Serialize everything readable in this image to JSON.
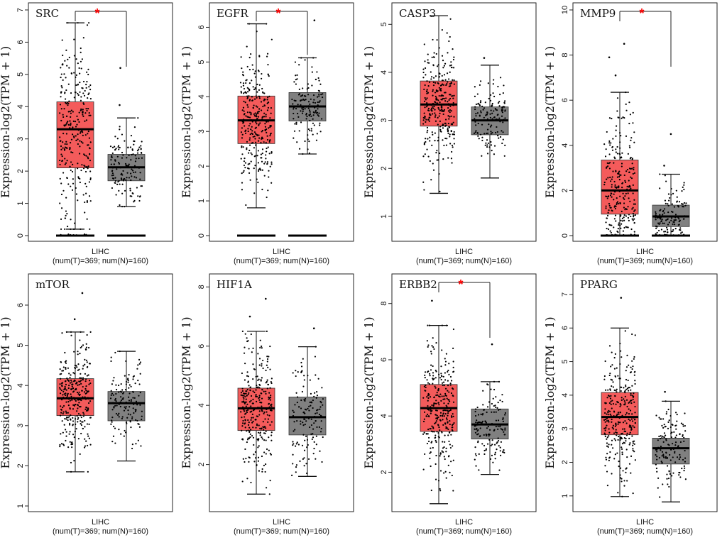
{
  "chart_data": [
    {
      "type": "box",
      "gene": "SRC",
      "ylabel": "Expression-log2(TPM + 1)",
      "ylim": [
        0,
        7
      ],
      "yticks": [
        0,
        1,
        2,
        3,
        4,
        5,
        6,
        7
      ],
      "dataset": "LIHC",
      "sample_info": "(num(T)=369; num(N)=160)",
      "significant": true,
      "tumor": {
        "min": 0.2,
        "q1": 2.1,
        "median": 3.3,
        "q3": 4.15,
        "max": 6.6
      },
      "normal": {
        "min": 0.9,
        "q1": 1.7,
        "median": 2.12,
        "q3": 2.52,
        "max": 3.65
      },
      "tumor_outliers_high": [],
      "normal_outliers_high": [
        4.05,
        5.2
      ],
      "zeros": true
    },
    {
      "type": "box",
      "gene": "EGFR",
      "ylabel": "Expression-log2(TPM + 1)",
      "ylim": [
        0,
        6.5
      ],
      "yticks": [
        0,
        1,
        2,
        3,
        4,
        5,
        6
      ],
      "dataset": "LIHC",
      "sample_info": "(num(T)=369; num(N)=160)",
      "significant": true,
      "tumor": {
        "min": 0.8,
        "q1": 2.65,
        "median": 3.32,
        "q3": 4.02,
        "max": 6.1
      },
      "normal": {
        "min": 2.35,
        "q1": 3.3,
        "median": 3.72,
        "q3": 4.12,
        "max": 5.12
      },
      "tumor_outliers_high": [],
      "normal_outliers_high": [
        6.2
      ],
      "zeros": true
    },
    {
      "type": "box",
      "gene": "CASP3",
      "ylabel": "Expression-log2(TPM + 1)",
      "ylim": [
        0.6,
        5.3
      ],
      "yticks": [
        1,
        2,
        3,
        4,
        5
      ],
      "dataset": "LIHC",
      "sample_info": "(num(T)=369; num(N)=160)",
      "significant": false,
      "tumor": {
        "min": 1.48,
        "q1": 2.88,
        "median": 3.33,
        "q3": 3.82,
        "max": 5.18
      },
      "normal": {
        "min": 1.8,
        "q1": 2.7,
        "median": 3.0,
        "q3": 3.28,
        "max": 4.15
      },
      "tumor_outliers_high": [],
      "normal_outliers_high": [
        4.3
      ],
      "zeros": false
    },
    {
      "type": "box",
      "gene": "MMP9",
      "ylabel": "Expression-log2(TPM + 1)",
      "ylim": [
        0,
        10
      ],
      "yticks": [
        0,
        2,
        4,
        6,
        8,
        10
      ],
      "dataset": "LIHC",
      "sample_info": "(num(T)=369; num(N)=160)",
      "significant": true,
      "tumor": {
        "min": 0,
        "q1": 0.95,
        "median": 2.0,
        "q3": 3.35,
        "max": 6.35
      },
      "normal": {
        "min": 0,
        "q1": 0.4,
        "median": 0.85,
        "q3": 1.35,
        "max": 2.72
      },
      "tumor_outliers_high": [
        7.1,
        7.9,
        8.5
      ],
      "normal_outliers_high": [
        4.5,
        3.1
      ],
      "zeros": true
    },
    {
      "type": "box",
      "gene": "mTOR",
      "ylabel": "Expression-log2(TPM + 1)",
      "ylim": [
        1,
        6.6
      ],
      "yticks": [
        1,
        2,
        3,
        4,
        5,
        6
      ],
      "dataset": "LIHC",
      "sample_info": "(num(T)=369; num(N)=160)",
      "significant": false,
      "tumor": {
        "min": 1.85,
        "q1": 3.25,
        "median": 3.68,
        "q3": 4.17,
        "max": 5.33
      },
      "normal": {
        "min": 2.12,
        "q1": 3.12,
        "median": 3.56,
        "q3": 3.85,
        "max": 4.85
      },
      "tumor_outliers_high": [
        5.65,
        6.3
      ],
      "normal_outliers_high": [],
      "zeros": false
    },
    {
      "type": "box",
      "gene": "HIF1A",
      "ylabel": "Expression-log2(TPM + 1)",
      "ylim": [
        0.6,
        8.2
      ],
      "yticks": [
        2,
        4,
        6,
        8
      ],
      "dataset": "LIHC",
      "sample_info": "(num(T)=369; num(N)=160)",
      "significant": false,
      "tumor": {
        "min": 1.0,
        "q1": 3.15,
        "median": 3.9,
        "q3": 4.58,
        "max": 6.5
      },
      "normal": {
        "min": 1.6,
        "q1": 3.0,
        "median": 3.6,
        "q3": 4.28,
        "max": 5.98
      },
      "tumor_outliers_high": [
        7.0,
        7.6
      ],
      "normal_outliers_high": [
        6.6
      ],
      "zeros": false
    },
    {
      "type": "box",
      "gene": "ERBB2",
      "ylabel": "Expression-log2(TPM + 1)",
      "ylim": [
        0.8,
        8.8
      ],
      "yticks": [
        2,
        4,
        6,
        8
      ],
      "dataset": "LIHC",
      "sample_info": "(num(T)=369; num(N)=160)",
      "significant": true,
      "tumor": {
        "min": 0.88,
        "q1": 3.45,
        "median": 4.28,
        "q3": 5.12,
        "max": 7.22
      },
      "normal": {
        "min": 1.92,
        "q1": 3.18,
        "median": 3.7,
        "q3": 4.25,
        "max": 5.22
      },
      "tumor_outliers_high": [
        8.1
      ],
      "normal_outliers_high": [
        6.55
      ],
      "zeros": false
    },
    {
      "type": "box",
      "gene": "PPARG",
      "ylabel": "Expression-log2(TPM + 1)",
      "ylim": [
        0.7,
        7.4
      ],
      "yticks": [
        1,
        2,
        3,
        4,
        5,
        6,
        7
      ],
      "dataset": "LIHC",
      "sample_info": "(num(T)=369; num(N)=160)",
      "significant": false,
      "tumor": {
        "min": 0.98,
        "q1": 2.82,
        "median": 3.35,
        "q3": 4.08,
        "max": 6.0
      },
      "normal": {
        "min": 0.82,
        "q1": 1.95,
        "median": 2.42,
        "q3": 2.72,
        "max": 3.82
      },
      "tumor_outliers_high": [
        6.9
      ],
      "normal_outliers_high": [
        4.1
      ],
      "zeros": false
    }
  ],
  "legend": {
    "tumor_color": "#f45b5b",
    "normal_color": "#808080",
    "star_color": "#ff0000",
    "star": "*"
  }
}
